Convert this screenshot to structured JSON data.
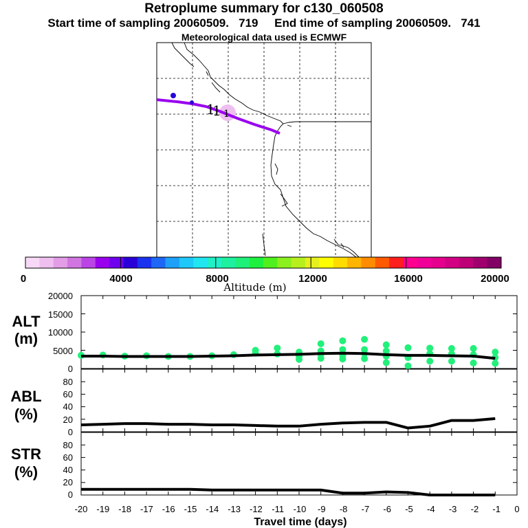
{
  "header": {
    "title": "Retroplume summary for c130_060508",
    "subtitle": "Start time of sampling 20060509.   719     End time of sampling 20060509.   741",
    "met": "Meteorological data used is ECMWF"
  },
  "map": {
    "markers": [
      "1",
      "1",
      "1"
    ]
  },
  "colorbar": {
    "label": "Altitude (m)",
    "ticks": [
      "0",
      "4000",
      "8000",
      "12000",
      "16000",
      "20000"
    ],
    "colors": [
      "#f7d9f7",
      "#efbff0",
      "#e29de6",
      "#d176e0",
      "#bb44e6",
      "#9900ee",
      "#6f00ef",
      "#2a00d9",
      "#1a32f0",
      "#1e66f5",
      "#1ea0f8",
      "#1ec8f8",
      "#1fe6f0",
      "#1ff0c8",
      "#1ef0a0",
      "#1ef07a",
      "#1ef040",
      "#50f01e",
      "#8cf01e",
      "#b8f01e",
      "#e6f01e",
      "#ffff00",
      "#ffdc00",
      "#ffb400",
      "#ff8c00",
      "#ff5a00",
      "#ff1e1e",
      "#ff0090",
      "#f00099",
      "#e6008e",
      "#d20082",
      "#be0077",
      "#a0006e",
      "#820066"
    ]
  },
  "panels": {
    "alt_label": [
      "ALT",
      "(m)"
    ],
    "abl_label": [
      "ABL",
      "(%)"
    ],
    "str_label": [
      "STR",
      "(%)"
    ],
    "xlabel": "Travel time (days)",
    "xticks": [
      "-20",
      "-19",
      "-18",
      "-17",
      "-16",
      "-15",
      "-14",
      "-13",
      "-12",
      "-11",
      "-10",
      "-9",
      "-8",
      "-7",
      "-6",
      "-5",
      "-4",
      "-3",
      "-2",
      "-1",
      "0"
    ],
    "alt_yticks": [
      "0",
      "5000",
      "10000",
      "15000",
      "20000"
    ],
    "pct_yticks": [
      "0",
      "20",
      "40",
      "60",
      "80"
    ]
  },
  "chart_data": [
    {
      "type": "line",
      "title": "ALT",
      "xlabel": "Travel time (days)",
      "ylabel": "ALT (m)",
      "ylim": [
        0,
        20000
      ],
      "x": [
        -20,
        -19,
        -18,
        -17,
        -16,
        -15,
        -14,
        -13,
        -12,
        -11,
        -10,
        -9,
        -8,
        -7,
        -6,
        -5,
        -4,
        -3,
        -2,
        -1.2,
        -1
      ],
      "values": [
        3400,
        3400,
        3300,
        3300,
        3300,
        3300,
        3400,
        3500,
        3700,
        3800,
        3900,
        4100,
        4200,
        4100,
        3800,
        3600,
        3600,
        3500,
        3400,
        2900,
        2800
      ],
      "scatter_color": "#22f07a",
      "scatter": [
        {
          "x": -20,
          "y": 3600
        },
        {
          "x": -19,
          "y": 3700
        },
        {
          "x": -18,
          "y": 3400
        },
        {
          "x": -17,
          "y": 3500
        },
        {
          "x": -16,
          "y": 3300
        },
        {
          "x": -15,
          "y": 3300
        },
        {
          "x": -14,
          "y": 3500
        },
        {
          "x": -13,
          "y": 3800
        },
        {
          "x": -12,
          "y": 4200
        },
        {
          "x": -12,
          "y": 5000
        },
        {
          "x": -11,
          "y": 4000
        },
        {
          "x": -11,
          "y": 5600
        },
        {
          "x": -10,
          "y": 4500
        },
        {
          "x": -10,
          "y": 3400
        },
        {
          "x": -10,
          "y": 2500
        },
        {
          "x": -9,
          "y": 4800
        },
        {
          "x": -9,
          "y": 3900
        },
        {
          "x": -9,
          "y": 2800
        },
        {
          "x": -9,
          "y": 6800
        },
        {
          "x": -8,
          "y": 5200
        },
        {
          "x": -8,
          "y": 3600
        },
        {
          "x": -8,
          "y": 2600
        },
        {
          "x": -8,
          "y": 7600
        },
        {
          "x": -7,
          "y": 8000
        },
        {
          "x": -7,
          "y": 5200
        },
        {
          "x": -7,
          "y": 4100
        },
        {
          "x": -7,
          "y": 2700
        },
        {
          "x": -6,
          "y": 6500
        },
        {
          "x": -6,
          "y": 4800
        },
        {
          "x": -6,
          "y": 3400
        },
        {
          "x": -6,
          "y": 1600
        },
        {
          "x": -5,
          "y": 5700
        },
        {
          "x": -5,
          "y": 3000
        },
        {
          "x": -5,
          "y": 700
        },
        {
          "x": -4,
          "y": 5600
        },
        {
          "x": -4,
          "y": 4100
        },
        {
          "x": -4,
          "y": 2000
        },
        {
          "x": -3,
          "y": 5500
        },
        {
          "x": -3,
          "y": 4000
        },
        {
          "x": -3,
          "y": 2000
        },
        {
          "x": -2,
          "y": 5500
        },
        {
          "x": -2,
          "y": 3800
        },
        {
          "x": -2,
          "y": 1500
        },
        {
          "x": -1,
          "y": 4500
        },
        {
          "x": -1,
          "y": 3000
        },
        {
          "x": -1,
          "y": 1400
        }
      ]
    },
    {
      "type": "line",
      "title": "ABL",
      "ylabel": "ABL (%)",
      "ylim": [
        0,
        100
      ],
      "x": [
        -20,
        -19,
        -18,
        -17,
        -16,
        -15,
        -14,
        -13,
        -12,
        -11,
        -10,
        -9,
        -8,
        -7,
        -6,
        -5,
        -4,
        -3,
        -2,
        -1
      ],
      "values": [
        11,
        12,
        13,
        13,
        12,
        12,
        11,
        11,
        10,
        9,
        9,
        12,
        14,
        15,
        15,
        6,
        9,
        18,
        18,
        21
      ]
    },
    {
      "type": "line",
      "title": "STR",
      "ylabel": "STR (%)",
      "ylim": [
        0,
        100
      ],
      "x": [
        -20,
        -19,
        -18,
        -17,
        -16,
        -15,
        -14,
        -13,
        -12,
        -11,
        -10,
        -9,
        -8,
        -7,
        -6,
        -5,
        -4,
        -3,
        -2,
        -1
      ],
      "values": [
        9,
        9,
        9,
        9,
        9,
        9,
        8,
        8,
        8,
        8,
        8,
        8,
        3,
        3,
        5,
        4,
        0,
        0,
        0,
        0
      ]
    }
  ]
}
